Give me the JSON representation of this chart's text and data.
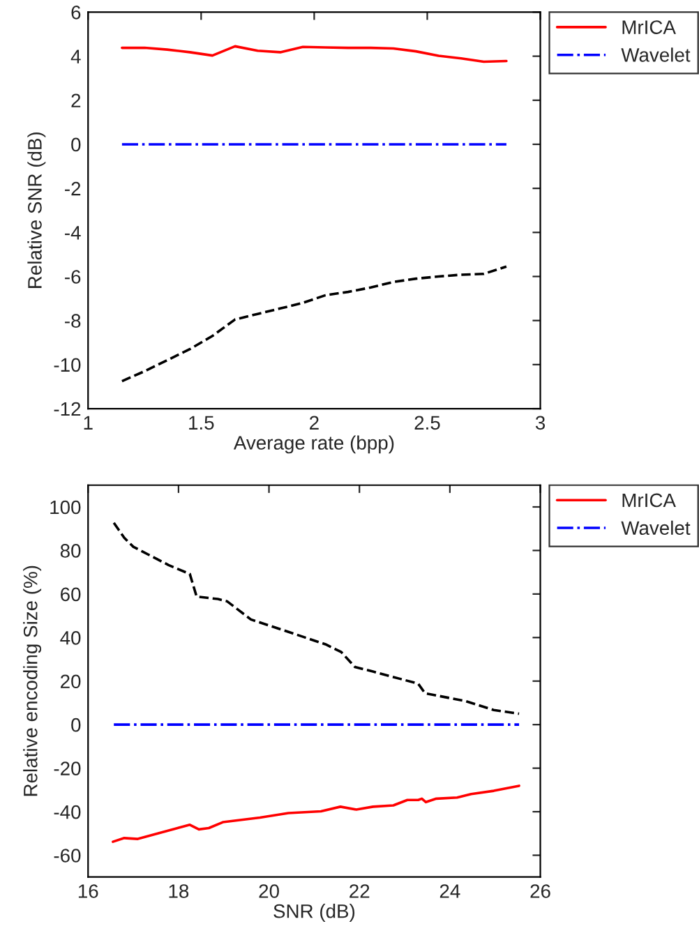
{
  "chart_data": [
    {
      "type": "line",
      "xlabel": "Average rate (bpp)",
      "ylabel": "Relative SNR (dB)",
      "xlim": [
        1,
        3
      ],
      "xticks": [
        1,
        1.5,
        2,
        2.5,
        3
      ],
      "ylim": [
        -12,
        6
      ],
      "yticks": [
        -12,
        -10,
        -8,
        -6,
        -4,
        -2,
        0,
        2,
        4,
        6
      ],
      "legend": "top right",
      "grid": false,
      "marker": "none",
      "series": [
        {
          "name": "MrICA",
          "color": "#ff0000",
          "line_style": "solid",
          "x": [
            1.15,
            1.25,
            1.35,
            1.45,
            1.55,
            1.65,
            1.75,
            1.85,
            1.95,
            2.05,
            2.15,
            2.25,
            2.35,
            2.45,
            2.55,
            2.65,
            2.75,
            2.85
          ],
          "values": [
            4.38,
            4.38,
            4.3,
            4.18,
            4.03,
            4.45,
            4.25,
            4.18,
            4.42,
            4.4,
            4.38,
            4.38,
            4.35,
            4.22,
            4.02,
            3.9,
            3.75,
            3.78
          ]
        },
        {
          "name": "Wavelet",
          "color": "#0000ff",
          "line_style": "dashdot",
          "x": [
            1.15,
            2.85
          ],
          "values": [
            0,
            0
          ]
        },
        {
          "color": "#000000",
          "line_style": "dashed",
          "x": [
            1.15,
            1.25,
            1.35,
            1.45,
            1.55,
            1.65,
            1.75,
            1.85,
            1.95,
            2.05,
            2.15,
            2.25,
            2.35,
            2.45,
            2.55,
            2.65,
            2.75,
            2.85
          ],
          "values": [
            -10.75,
            -10.3,
            -9.8,
            -9.3,
            -8.7,
            -7.95,
            -7.7,
            -7.45,
            -7.2,
            -6.85,
            -6.7,
            -6.5,
            -6.25,
            -6.1,
            -6.0,
            -5.92,
            -5.88,
            -5.55
          ]
        }
      ]
    },
    {
      "type": "line",
      "xlabel": "SNR (dB)",
      "ylabel": "Relative encoding Size (%)",
      "xlim": [
        16,
        26
      ],
      "xticks": [
        16,
        18,
        20,
        22,
        24,
        26
      ],
      "ylim": [
        -70,
        110
      ],
      "yticks": [
        -60,
        -40,
        -20,
        0,
        20,
        40,
        60,
        80,
        100
      ],
      "legend": "top right",
      "grid": false,
      "marker": "none",
      "series": [
        {
          "name": "MrICA",
          "color": "#ff0000",
          "line_style": "solid",
          "x": [
            16.55,
            16.8,
            17.1,
            18.25,
            18.45,
            18.67,
            18.98,
            19.8,
            20.43,
            21.15,
            21.58,
            21.93,
            22.3,
            22.75,
            23.06,
            23.3,
            23.38,
            23.47,
            23.7,
            24.16,
            24.47,
            24.97,
            25.53
          ],
          "values": [
            -53.8,
            -52.1,
            -52.5,
            -46.0,
            -48.1,
            -47.5,
            -44.8,
            -42.7,
            -40.6,
            -39.8,
            -37.7,
            -39.0,
            -37.7,
            -37.1,
            -34.6,
            -34.6,
            -34.0,
            -35.6,
            -34.0,
            -33.5,
            -31.9,
            -30.4,
            -28.1
          ]
        },
        {
          "name": "Wavelet",
          "color": "#0000ff",
          "line_style": "dashdot",
          "x": [
            16.57,
            25.53
          ],
          "values": [
            0,
            0
          ]
        },
        {
          "color": "#000000",
          "line_style": "dashed",
          "x": [
            16.57,
            16.8,
            17.0,
            17.78,
            18.25,
            18.4,
            18.87,
            19.07,
            19.6,
            20.2,
            21.25,
            21.6,
            21.9,
            22.3,
            23.3,
            23.45,
            24.35,
            24.97,
            25.53
          ],
          "values": [
            92.7,
            85.8,
            81.7,
            73.3,
            69.2,
            58.8,
            57.7,
            56.7,
            48.3,
            44.2,
            36.9,
            33.3,
            26.5,
            24.4,
            18.8,
            14.4,
            10.8,
            6.7,
            5.0
          ]
        }
      ]
    }
  ]
}
